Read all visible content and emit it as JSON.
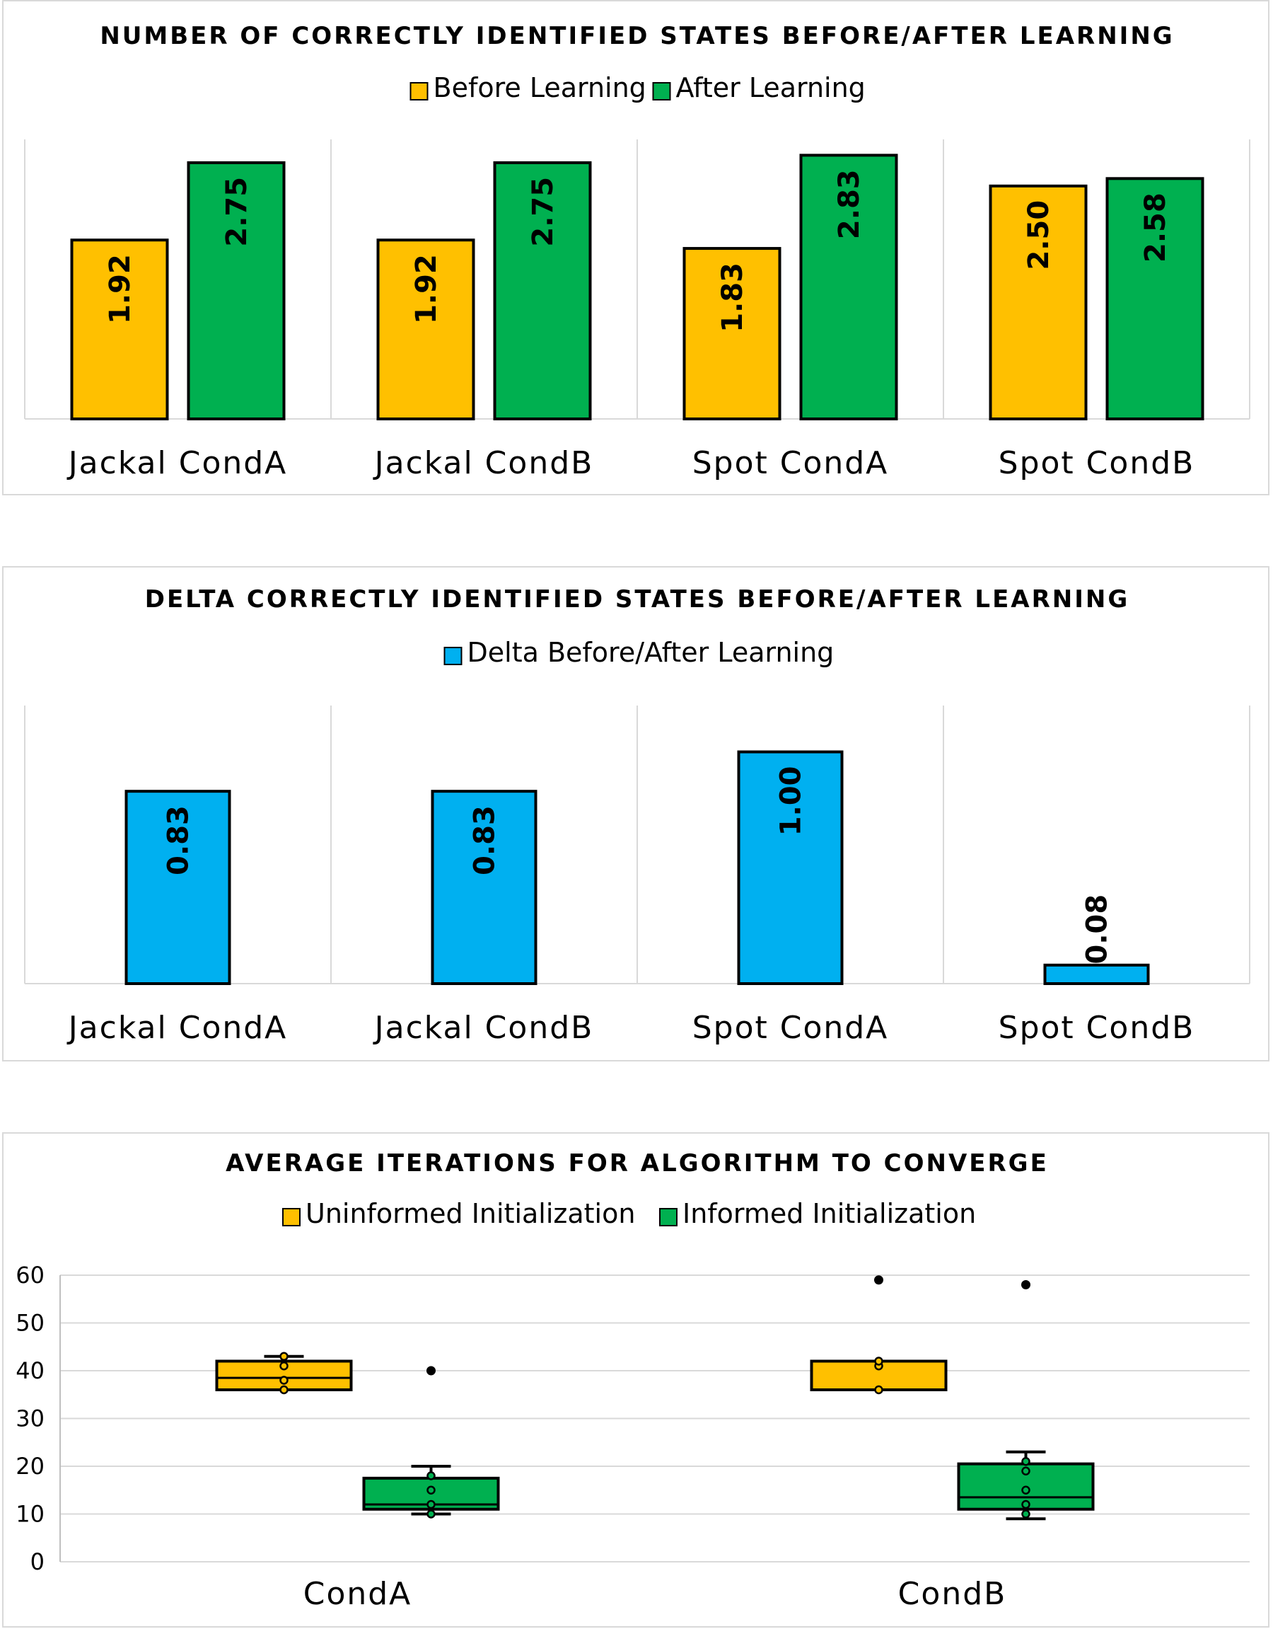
{
  "chart_data": [
    {
      "type": "bar",
      "title": "NUMBER OF CORRECTLY IDENTIFIED STATES BEFORE/AFTER LEARNING",
      "categories": [
        "Jackal CondA",
        "Jackal CondB",
        "Spot CondA",
        "Spot CondB"
      ],
      "series": [
        {
          "name": "Before Learning",
          "color": "#FFC000",
          "values": [
            1.92,
            1.92,
            1.83,
            2.5
          ],
          "labels": [
            "1.92",
            "1.92",
            "1.83",
            "2.50"
          ]
        },
        {
          "name": "After Learning",
          "color": "#00B050",
          "values": [
            2.75,
            2.75,
            2.83,
            2.58
          ],
          "labels": [
            "2.75",
            "2.75",
            "2.83",
            "2.58"
          ]
        }
      ],
      "ylim": [
        0,
        3.0
      ],
      "grid": false,
      "legend": "top"
    },
    {
      "type": "bar",
      "title": "DELTA CORRECTLY IDENTIFIED STATES BEFORE/AFTER LEARNING",
      "categories": [
        "Jackal CondA",
        "Jackal CondB",
        "Spot CondA",
        "Spot CondB"
      ],
      "series": [
        {
          "name": "Delta Before/After Learning",
          "color": "#00B0F0",
          "values": [
            0.83,
            0.83,
            1.0,
            0.08
          ],
          "labels": [
            "0.83",
            "0.83",
            "1.00",
            "0.08"
          ]
        }
      ],
      "ylim": [
        0,
        1.2
      ],
      "grid": false,
      "legend": "top"
    },
    {
      "type": "box",
      "title": "AVERAGE ITERATIONS FOR ALGORITHM TO CONVERGE",
      "categories": [
        "CondA",
        "CondB"
      ],
      "yticks": [
        0,
        10,
        20,
        30,
        40,
        50,
        60
      ],
      "ylim": [
        0,
        60
      ],
      "grid": true,
      "legend": "top",
      "series": [
        {
          "name": "Uninformed Initialization",
          "color": "#FFC000",
          "boxes": [
            {
              "min": 36,
              "q1": 36,
              "median": 38.5,
              "q3": 42,
              "max": 43,
              "points": [
                36,
                38,
                41,
                43
              ],
              "outliers": []
            },
            {
              "min": 36,
              "q1": 36,
              "median": 36,
              "q3": 42,
              "max": 42,
              "points": [
                36,
                41,
                42
              ],
              "outliers": [
                59
              ]
            }
          ]
        },
        {
          "name": "Informed Initialization",
          "color": "#00B050",
          "boxes": [
            {
              "min": 10,
              "q1": 11,
              "median": 12,
              "q3": 17.5,
              "max": 20,
              "points": [
                10,
                12,
                15,
                18
              ],
              "outliers": [
                40
              ]
            },
            {
              "min": 9,
              "q1": 11,
              "median": 13.5,
              "q3": 20.5,
              "max": 23,
              "points": [
                10,
                12,
                15,
                19,
                21
              ],
              "outliers": [
                58
              ]
            }
          ]
        }
      ]
    }
  ]
}
